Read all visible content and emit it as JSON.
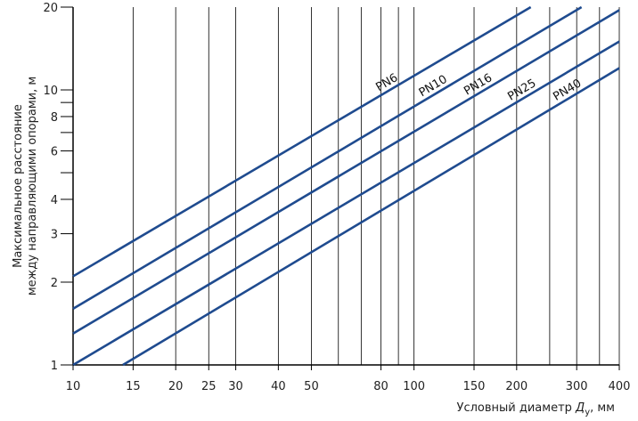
{
  "chart_data": {
    "type": "line",
    "xscale": "log",
    "yscale": "log",
    "xlim": [
      10,
      400
    ],
    "ylim": [
      1,
      20
    ],
    "x_ticks": [
      10,
      15,
      20,
      25,
      30,
      40,
      50,
      80,
      100,
      150,
      200,
      300,
      400
    ],
    "x_tick_labels": [
      "10",
      "15",
      "20",
      "25",
      "30",
      "40",
      "50",
      "80",
      "100",
      "150",
      "200",
      "300",
      "400"
    ],
    "x_minor_ticks": [
      60,
      70,
      90,
      250,
      350
    ],
    "y_ticks": [
      1,
      2,
      3,
      4,
      6,
      8,
      10,
      20
    ],
    "y_tick_labels": [
      "1",
      "2",
      "3",
      "4",
      "6",
      "8",
      "10",
      "20"
    ],
    "y_minor_ticks": [
      5,
      7,
      9
    ],
    "grid": "vertical",
    "xlabel_text": "Условный диаметр ",
    "xlabel_symbol": "Д",
    "xlabel_subscript": "у",
    "xlabel_unit": ", мм",
    "ylabel_line1": "Максимальное расстояние",
    "ylabel_line2": "между направляющими опорами, м",
    "series": [
      {
        "name": "PN6",
        "x": [
          10,
          220
        ],
        "y": [
          2.1,
          20
        ],
        "label": "PN6",
        "label_at": 80
      },
      {
        "name": "PN10",
        "x": [
          10,
          310
        ],
        "y": [
          1.6,
          20
        ],
        "label": "PN10",
        "label_at": 107
      },
      {
        "name": "PN16",
        "x": [
          10,
          400
        ],
        "y": [
          1.3,
          19.5
        ],
        "label": "PN16",
        "label_at": 145
      },
      {
        "name": "PN25",
        "x": [
          10,
          400
        ],
        "y": [
          1.0,
          15.0
        ],
        "label": "PN25",
        "label_at": 195
      },
      {
        "name": "PN40",
        "x": [
          14,
          400
        ],
        "y": [
          1.0,
          12.0
        ],
        "label": "PN40",
        "label_at": 265
      }
    ],
    "line_color": "#1f4b8f"
  }
}
